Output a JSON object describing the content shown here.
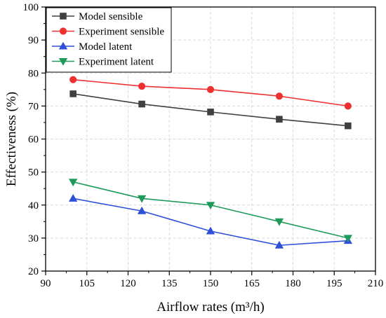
{
  "chart_data": {
    "type": "line",
    "title": "",
    "xlabel": "Airflow rates (m³/h)",
    "ylabel": "Effectiveness (%)",
    "xlim": [
      90,
      210
    ],
    "ylim": [
      20,
      100
    ],
    "xticks": [
      90,
      105,
      120,
      135,
      150,
      165,
      180,
      195,
      210
    ],
    "yticks": [
      20,
      30,
      40,
      50,
      60,
      70,
      80,
      90,
      100
    ],
    "grid": true,
    "legend_position": "top-left",
    "x": [
      100,
      125,
      150,
      175,
      200
    ],
    "series": [
      {
        "name": "Model sensible",
        "values": [
          73.7,
          70.6,
          68.2,
          66.0,
          64.0
        ],
        "color": "#404040",
        "marker": "square"
      },
      {
        "name": "Experiment sensible",
        "values": [
          78.0,
          76.0,
          75.0,
          73.0,
          70.0
        ],
        "color": "#ee3030",
        "marker": "circle"
      },
      {
        "name": "Model latent",
        "values": [
          42.0,
          38.2,
          32.1,
          27.8,
          29.2
        ],
        "color": "#2e4fd8",
        "marker": "triangle-up"
      },
      {
        "name": "Experiment latent",
        "values": [
          47.0,
          42.0,
          40.0,
          35.0,
          30.0
        ],
        "color": "#1f9a5a",
        "marker": "triangle-down"
      }
    ]
  }
}
